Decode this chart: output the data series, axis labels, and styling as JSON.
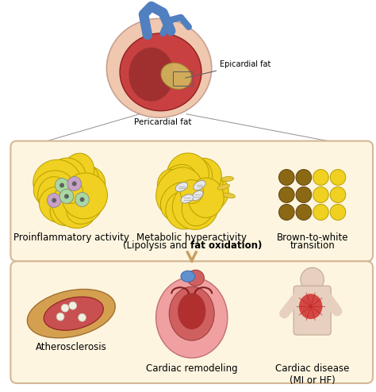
{
  "bg_color": "#ffffff",
  "box1_color": "#fdf5e0",
  "box2_color": "#fdf5e0",
  "box_edge_color": "#d4b896",
  "top_labels": {
    "epicardial": "Epicardial fat",
    "pericardial": "Pericardial fat"
  },
  "middle_labels": [
    "Proinflammatory activity",
    "Metabolic hyperactivity",
    "(Lipolysis and fat oxidation)",
    "Brown-to-white\ntransition"
  ],
  "bottom_labels": [
    "Atherosclerosis",
    "Cardiac remodeling",
    "Cardiac disease\n(MI or HF)"
  ],
  "arrow_color": "#c8a060",
  "line_color": "#888888",
  "yellow_fat": "#f0d020",
  "brown_fat": "#8B6914",
  "cell_green": "#a8d8a0",
  "cell_purple": "#c8a0c8",
  "mito_color": "#e8e8e8",
  "heart_red": "#c84040",
  "heart_blue": "#5080c0",
  "vessel_red": "#c85050",
  "vessel_yellow": "#d4a050",
  "font_size_label": 8.5
}
